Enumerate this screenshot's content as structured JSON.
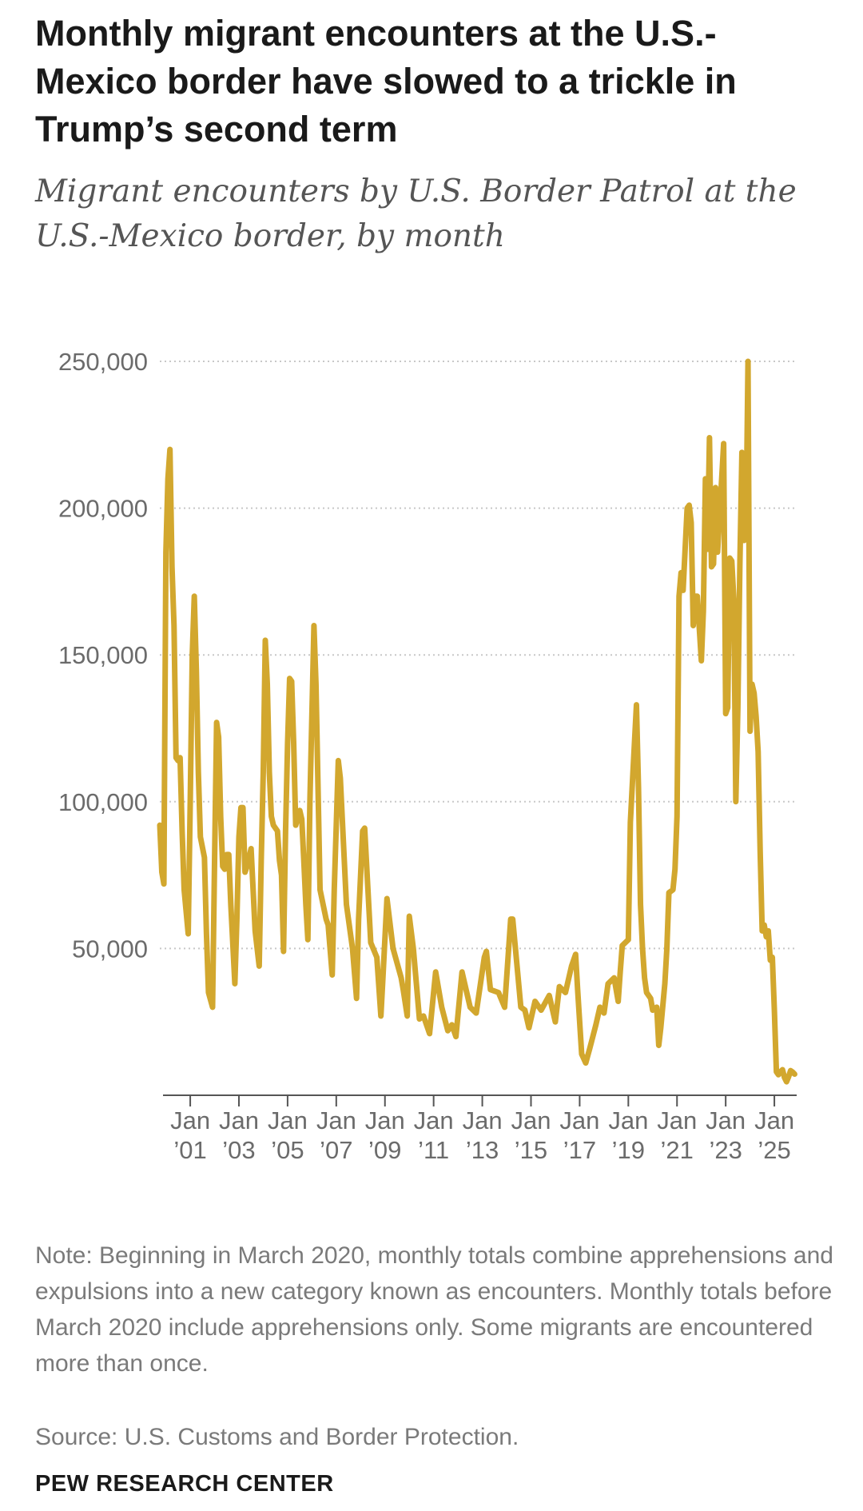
{
  "chart_data": {
    "type": "line",
    "title": "Monthly migrant encounters at the U.S.-Mexico border have slowed to a trickle in Trump’s second term",
    "subtitle": "Migrant encounters by U.S. Border Patrol at the U.S.-Mexico border, by month",
    "note": "Note: Beginning in March 2020, monthly totals combine apprehensions and expulsions into a new category known as encounters. Monthly totals before March 2020 include apprehensions only. Some migrants are encountered more than once.",
    "source": "Source: U.S. Customs and Border Protection.",
    "credit": "PEW RESEARCH CENTER",
    "color": "#d2a72e",
    "grid": true,
    "xlim": [
      "1999-10",
      "2025-12"
    ],
    "xticks": [
      {
        "value": "2001-01",
        "label": "Jan ’01"
      },
      {
        "value": "2003-01",
        "label": "Jan ’03"
      },
      {
        "value": "2005-01",
        "label": "Jan ’05"
      },
      {
        "value": "2007-01",
        "label": "Jan ’07"
      },
      {
        "value": "2009-01",
        "label": "Jan ’09"
      },
      {
        "value": "2011-01",
        "label": "Jan ’11"
      },
      {
        "value": "2013-01",
        "label": "Jan ’13"
      },
      {
        "value": "2015-01",
        "label": "Jan ’15"
      },
      {
        "value": "2017-01",
        "label": "Jan ’17"
      },
      {
        "value": "2019-01",
        "label": "Jan ’19"
      },
      {
        "value": "2021-01",
        "label": "Jan ’21"
      },
      {
        "value": "2023-01",
        "label": "Jan ’23"
      },
      {
        "value": "2025-01",
        "label": "Jan ’25"
      }
    ],
    "ylim": [
      0,
      250000
    ],
    "yticks": [
      {
        "value": 50000,
        "label": "50,000"
      },
      {
        "value": 100000,
        "label": "100,000"
      },
      {
        "value": 150000,
        "label": "150,000"
      },
      {
        "value": 200000,
        "label": "200,000"
      },
      {
        "value": 250000,
        "label": "250,000"
      }
    ],
    "x": [
      "1999-10",
      "1999-11",
      "1999-12",
      "2000-01",
      "2000-02",
      "2000-03",
      "2000-04",
      "2000-05",
      "2000-06",
      "2000-07",
      "2000-08",
      "2000-09",
      "2000-10",
      "2000-12",
      "2001-01",
      "2001-02",
      "2001-03",
      "2001-04",
      "2001-05",
      "2001-06",
      "2001-08",
      "2001-09",
      "2001-10",
      "2001-12",
      "2002-01",
      "2002-02",
      "2002-03",
      "2002-04",
      "2002-05",
      "2002-06",
      "2002-07",
      "2002-08",
      "2002-09",
      "2002-11",
      "2002-12",
      "2003-01",
      "2003-02",
      "2003-03",
      "2003-04",
      "2003-05",
      "2003-07",
      "2003-08",
      "2003-09",
      "2003-11",
      "2003-12",
      "2004-01",
      "2004-02",
      "2004-03",
      "2004-04",
      "2004-05",
      "2004-06",
      "2004-08",
      "2004-09",
      "2004-10",
      "2004-11",
      "2004-12",
      "2005-01",
      "2005-02",
      "2005-03",
      "2005-04",
      "2005-05",
      "2005-07",
      "2005-08",
      "2005-09",
      "2005-10",
      "2005-11",
      "2005-12",
      "2006-02",
      "2006-03",
      "2006-05",
      "2006-08",
      "2006-09",
      "2006-11",
      "2006-12",
      "2007-02",
      "2007-03",
      "2007-06",
      "2007-09",
      "2007-11",
      "2007-12",
      "2008-02",
      "2008-03",
      "2008-06",
      "2008-09",
      "2008-11",
      "2008-12",
      "2009-02",
      "2009-05",
      "2009-09",
      "2009-10",
      "2009-12",
      "2010-01",
      "2010-03",
      "2010-06",
      "2010-08",
      "2010-11",
      "2011-02",
      "2011-05",
      "2011-08",
      "2011-10",
      "2011-12",
      "2012-03",
      "2012-07",
      "2012-10",
      "2013-02",
      "2013-03",
      "2013-05",
      "2013-09",
      "2013-12",
      "2014-03",
      "2014-04",
      "2014-08",
      "2014-10",
      "2014-12",
      "2015-03",
      "2015-06",
      "2015-10",
      "2016-01",
      "2016-03",
      "2016-06",
      "2016-09",
      "2016-11",
      "2016-12",
      "2017-02",
      "2017-04",
      "2017-06",
      "2017-09",
      "2017-11",
      "2018-01",
      "2018-03",
      "2018-06",
      "2018-08",
      "2018-09",
      "2018-10",
      "2019-01",
      "2019-02",
      "2019-05",
      "2019-06",
      "2019-07",
      "2019-08",
      "2019-09",
      "2019-10",
      "2019-12",
      "2020-01",
      "2020-03",
      "2020-04",
      "2020-05",
      "2020-07",
      "2020-08",
      "2020-09",
      "2020-11",
      "2020-12",
      "2021-01",
      "2021-02",
      "2021-03",
      "2021-04",
      "2021-06",
      "2021-07",
      "2021-08",
      "2021-09",
      "2021-10",
      "2021-11",
      "2022-01",
      "2022-02",
      "2022-03",
      "2022-04",
      "2022-05",
      "2022-06",
      "2022-07",
      "2022-08",
      "2022-09",
      "2022-12",
      "2023-01",
      "2023-02",
      "2023-03",
      "2023-04",
      "2023-05",
      "2023-06",
      "2023-07",
      "2023-08",
      "2023-09",
      "2023-10",
      "2023-11",
      "2023-12",
      "2024-01",
      "2024-02",
      "2024-03",
      "2024-04",
      "2024-05",
      "2024-06",
      "2024-07",
      "2024-08",
      "2024-09",
      "2024-10",
      "2024-11",
      "2024-12",
      "2025-01",
      "2025-02",
      "2025-03",
      "2025-04",
      "2025-05",
      "2025-06",
      "2025-07",
      "2025-08",
      "2025-09",
      "2025-10",
      "2025-11"
    ],
    "values": [
      92000,
      76000,
      72000,
      185000,
      210000,
      220000,
      180000,
      160000,
      115000,
      114000,
      115000,
      90000,
      70000,
      55000,
      100000,
      150000,
      170000,
      145000,
      110000,
      88000,
      81000,
      55000,
      35000,
      30000,
      80000,
      127000,
      122000,
      95000,
      78000,
      77000,
      82000,
      82000,
      65000,
      38000,
      60000,
      88000,
      98000,
      98000,
      76000,
      78000,
      84000,
      70000,
      56000,
      44000,
      80000,
      110000,
      155000,
      140000,
      110000,
      95000,
      92000,
      90000,
      80000,
      75000,
      49000,
      90000,
      120000,
      142000,
      141000,
      120000,
      92000,
      97000,
      94000,
      80000,
      65000,
      53000,
      100000,
      160000,
      140000,
      70000,
      60000,
      58000,
      41000,
      70000,
      114000,
      108000,
      65000,
      50000,
      33000,
      60000,
      90000,
      91000,
      52000,
      47000,
      27000,
      40000,
      67000,
      50000,
      40000,
      36000,
      27000,
      61000,
      50000,
      26000,
      27000,
      21000,
      42000,
      30000,
      22000,
      24000,
      20000,
      42000,
      30000,
      28000,
      47000,
      49000,
      36000,
      35000,
      30000,
      60000,
      60000,
      30000,
      29000,
      23000,
      32000,
      29000,
      34000,
      25000,
      37000,
      35000,
      44000,
      48000,
      36000,
      14000,
      11000,
      16000,
      24000,
      30000,
      28000,
      38000,
      40000,
      32000,
      42000,
      51000,
      53000,
      93000,
      133000,
      105000,
      65000,
      50000,
      40000,
      35000,
      33000,
      29000,
      30000,
      17000,
      23000,
      38000,
      50000,
      69000,
      70000,
      77000,
      95000,
      170000,
      178000,
      172000,
      200000,
      201000,
      195000,
      160000,
      170000,
      170000,
      148000,
      165000,
      210000,
      186000,
      224000,
      180000,
      181000,
      207000,
      185000,
      222000,
      130000,
      132000,
      183000,
      182000,
      169000,
      100000,
      132000,
      181000,
      219000,
      189000,
      191000,
      250000,
      124000,
      140000,
      137000,
      129000,
      117000,
      83000,
      56000,
      58000,
      54000,
      56000,
      46000,
      47000,
      29000,
      8000,
      7000,
      8000,
      8700,
      6000,
      4600,
      6300,
      8400,
      7900,
      7200
    ]
  }
}
